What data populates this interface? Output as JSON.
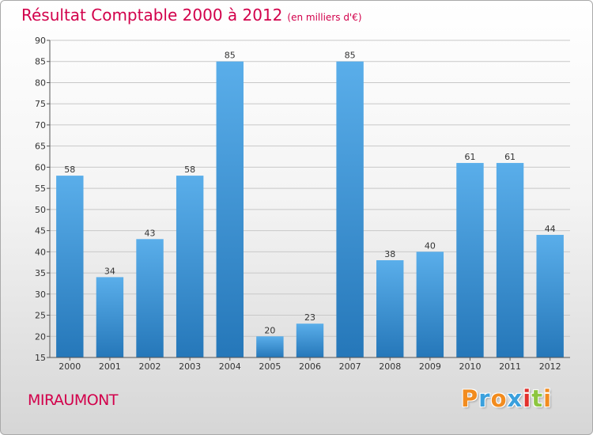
{
  "chart_data": {
    "type": "bar",
    "title": "Résultat Comptable 2000 à 2012",
    "subtitle": "(en milliers d'€)",
    "categories": [
      "2000",
      "2001",
      "2002",
      "2003",
      "2004",
      "2005",
      "2006",
      "2007",
      "2008",
      "2009",
      "2010",
      "2011",
      "2012"
    ],
    "values": [
      58,
      34,
      43,
      58,
      85,
      20,
      23,
      85,
      38,
      40,
      61,
      61,
      44
    ],
    "xlabel": "",
    "ylabel": "",
    "ylim": [
      15,
      90
    ],
    "yticks": [
      15,
      20,
      25,
      30,
      35,
      40,
      45,
      50,
      55,
      60,
      65,
      70,
      75,
      80,
      85,
      90
    ],
    "grid": true,
    "bar_color_top": "#5aaeea",
    "bar_color_bottom": "#2577b9"
  },
  "location": "MIRAUMONT",
  "brand": {
    "letters": [
      "P",
      "r",
      "o",
      "x",
      "i",
      "t",
      "i"
    ],
    "colors": [
      "#f28c1f",
      "#3aa0dd",
      "#f28c1f",
      "#3aa0dd",
      "#e2312d",
      "#8dc63f",
      "#f28c1f"
    ]
  },
  "colors": {
    "accent": "#d2004b"
  }
}
